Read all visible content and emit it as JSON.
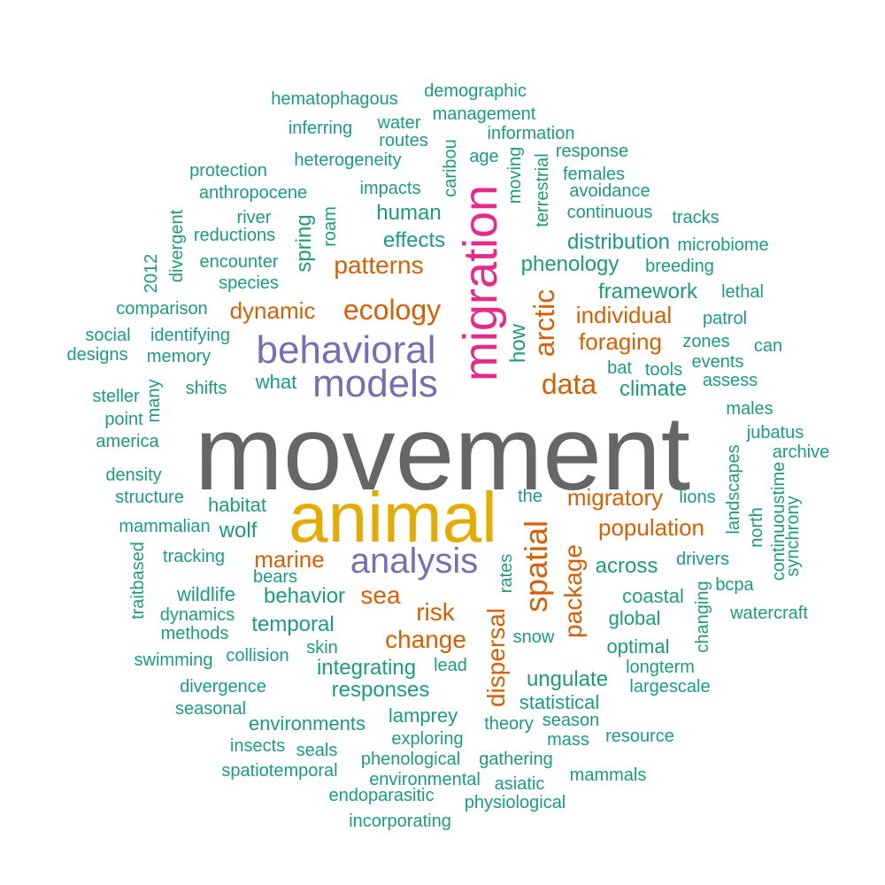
{
  "colors": {
    "gray": "#666666",
    "gold": "#E6AB02",
    "purple": "#7570B3",
    "pink": "#E7298A",
    "orange": "#D95F02",
    "teal": "#1B9E77"
  },
  "words": [
    {
      "text": "movement",
      "weight": 8,
      "color": "gray"
    },
    {
      "text": "animal",
      "weight": 7,
      "color": "gold"
    },
    {
      "text": "migration",
      "weight": 6,
      "color": "pink",
      "vertical": true
    },
    {
      "text": "behavioral",
      "weight": 5,
      "color": "purple"
    },
    {
      "text": "models",
      "weight": 5,
      "color": "purple"
    },
    {
      "text": "analysis",
      "weight": 5,
      "color": "purple"
    },
    {
      "text": "ecology",
      "weight": 4,
      "color": "orange"
    },
    {
      "text": "patterns",
      "weight": 4,
      "color": "orange"
    },
    {
      "text": "dynamic",
      "weight": 4,
      "color": "orange"
    },
    {
      "text": "data",
      "weight": 4,
      "color": "orange"
    },
    {
      "text": "arctic",
      "weight": 4,
      "color": "orange",
      "vertical": true
    },
    {
      "text": "spatial",
      "weight": 4,
      "color": "orange",
      "vertical": true
    },
    {
      "text": "migratory",
      "weight": 4,
      "color": "orange"
    },
    {
      "text": "population",
      "weight": 4,
      "color": "orange"
    },
    {
      "text": "marine",
      "weight": 4,
      "color": "orange"
    },
    {
      "text": "sea",
      "weight": 4,
      "color": "orange"
    },
    {
      "text": "risk",
      "weight": 4,
      "color": "orange"
    },
    {
      "text": "change",
      "weight": 4,
      "color": "orange"
    },
    {
      "text": "package",
      "weight": 4,
      "color": "orange",
      "vertical": true
    },
    {
      "text": "dispersal",
      "weight": 4,
      "color": "orange",
      "vertical": true
    },
    {
      "text": "individual",
      "weight": 4,
      "color": "orange"
    },
    {
      "text": "foraging",
      "weight": 4,
      "color": "orange"
    },
    {
      "text": "human",
      "weight": 3,
      "color": "teal"
    },
    {
      "text": "effects",
      "weight": 3,
      "color": "teal"
    },
    {
      "text": "impacts",
      "weight": 2,
      "color": "teal"
    },
    {
      "text": "distribution",
      "weight": 3,
      "color": "teal"
    },
    {
      "text": "phenology",
      "weight": 3,
      "color": "teal"
    },
    {
      "text": "framework",
      "weight": 3,
      "color": "teal"
    },
    {
      "text": "climate",
      "weight": 3,
      "color": "teal"
    },
    {
      "text": "spring",
      "weight": 3,
      "color": "teal",
      "vertical": true
    },
    {
      "text": "how",
      "weight": 3,
      "color": "teal",
      "vertical": true
    },
    {
      "text": "what",
      "weight": 3,
      "color": "teal"
    },
    {
      "text": "habitat",
      "weight": 3,
      "color": "teal"
    },
    {
      "text": "wolf",
      "weight": 3,
      "color": "teal"
    },
    {
      "text": "behavior",
      "weight": 3,
      "color": "teal"
    },
    {
      "text": "temporal",
      "weight": 3,
      "color": "teal"
    },
    {
      "text": "integrating",
      "weight": 3,
      "color": "teal"
    },
    {
      "text": "responses",
      "weight": 3,
      "color": "teal"
    },
    {
      "text": "across",
      "weight": 3,
      "color": "teal"
    },
    {
      "text": "ungulate",
      "weight": 3,
      "color": "teal"
    },
    {
      "text": "the",
      "weight": 2,
      "color": "teal"
    },
    {
      "text": "heterogeneity",
      "weight": 2,
      "color": "teal"
    },
    {
      "text": "statistical",
      "weight": 2,
      "color": "teal"
    },
    {
      "text": "environments",
      "weight": 2,
      "color": "teal"
    },
    {
      "text": "lamprey",
      "weight": 2,
      "color": "teal"
    },
    {
      "text": "continuous",
      "weight": 2,
      "color": "teal"
    },
    {
      "text": "hematophagous",
      "weight": 1,
      "color": "teal"
    },
    {
      "text": "demographic",
      "weight": 1,
      "color": "teal"
    },
    {
      "text": "management",
      "weight": 1,
      "color": "teal"
    },
    {
      "text": "inferring",
      "weight": 1,
      "color": "teal"
    },
    {
      "text": "water",
      "weight": 1,
      "color": "teal"
    },
    {
      "text": "information",
      "weight": 1,
      "color": "teal"
    },
    {
      "text": "routes",
      "weight": 1,
      "color": "teal"
    },
    {
      "text": "caribou",
      "weight": 1,
      "color": "teal",
      "vertical": true
    },
    {
      "text": "response",
      "weight": 1,
      "color": "teal"
    },
    {
      "text": "age",
      "weight": 1,
      "color": "teal"
    },
    {
      "text": "moving",
      "weight": 1,
      "color": "teal",
      "vertical": true
    },
    {
      "text": "protection",
      "weight": 1,
      "color": "teal"
    },
    {
      "text": "terrestrial",
      "weight": 1,
      "color": "teal",
      "vertical": true
    },
    {
      "text": "females",
      "weight": 1,
      "color": "teal"
    },
    {
      "text": "anthropocene",
      "weight": 1,
      "color": "teal"
    },
    {
      "text": "avoidance",
      "weight": 1,
      "color": "teal"
    },
    {
      "text": "divergent",
      "weight": 1,
      "color": "teal",
      "vertical": true
    },
    {
      "text": "river",
      "weight": 1,
      "color": "teal"
    },
    {
      "text": "roam",
      "weight": 1,
      "color": "teal",
      "vertical": true
    },
    {
      "text": "tracks",
      "weight": 1,
      "color": "teal"
    },
    {
      "text": "reductions",
      "weight": 1,
      "color": "teal"
    },
    {
      "text": "microbiome",
      "weight": 1,
      "color": "teal"
    },
    {
      "text": "2012",
      "weight": 1,
      "color": "teal",
      "vertical": true
    },
    {
      "text": "encounter",
      "weight": 1,
      "color": "teal"
    },
    {
      "text": "breeding",
      "weight": 1,
      "color": "teal"
    },
    {
      "text": "species",
      "weight": 1,
      "color": "teal"
    },
    {
      "text": "lethal",
      "weight": 1,
      "color": "teal"
    },
    {
      "text": "comparison",
      "weight": 1,
      "color": "teal"
    },
    {
      "text": "patrol",
      "weight": 1,
      "color": "teal"
    },
    {
      "text": "social",
      "weight": 1,
      "color": "teal"
    },
    {
      "text": "identifying",
      "weight": 1,
      "color": "teal"
    },
    {
      "text": "zones",
      "weight": 1,
      "color": "teal"
    },
    {
      "text": "can",
      "weight": 1,
      "color": "teal"
    },
    {
      "text": "designs",
      "weight": 1,
      "color": "teal"
    },
    {
      "text": "memory",
      "weight": 1,
      "color": "teal"
    },
    {
      "text": "bat",
      "weight": 1,
      "color": "teal"
    },
    {
      "text": "tools",
      "weight": 1,
      "color": "teal"
    },
    {
      "text": "events",
      "weight": 1,
      "color": "teal"
    },
    {
      "text": "many",
      "weight": 1,
      "color": "teal",
      "vertical": true
    },
    {
      "text": "shifts",
      "weight": 1,
      "color": "teal"
    },
    {
      "text": "assess",
      "weight": 1,
      "color": "teal"
    },
    {
      "text": "steller",
      "weight": 1,
      "color": "teal"
    },
    {
      "text": "point",
      "weight": 1,
      "color": "teal"
    },
    {
      "text": "males",
      "weight": 1,
      "color": "teal"
    },
    {
      "text": "america",
      "weight": 1,
      "color": "teal"
    },
    {
      "text": "jubatus",
      "weight": 1,
      "color": "teal"
    },
    {
      "text": "density",
      "weight": 1,
      "color": "teal"
    },
    {
      "text": "archive",
      "weight": 1,
      "color": "teal"
    },
    {
      "text": "landscapes",
      "weight": 1,
      "color": "teal",
      "vertical": true
    },
    {
      "text": "continuoustime",
      "weight": 1,
      "color": "teal",
      "vertical": true
    },
    {
      "text": "structure",
      "weight": 1,
      "color": "teal"
    },
    {
      "text": "lions",
      "weight": 1,
      "color": "teal"
    },
    {
      "text": "synchrony",
      "weight": 1,
      "color": "teal",
      "vertical": true
    },
    {
      "text": "north",
      "weight": 1,
      "color": "teal",
      "vertical": true
    },
    {
      "text": "mammalian",
      "weight": 1,
      "color": "teal"
    },
    {
      "text": "tracking",
      "weight": 1,
      "color": "teal"
    },
    {
      "text": "drivers",
      "weight": 1,
      "color": "teal"
    },
    {
      "text": "traitbased",
      "weight": 1,
      "color": "teal",
      "vertical": true
    },
    {
      "text": "bears",
      "weight": 1,
      "color": "teal"
    },
    {
      "text": "rates",
      "weight": 1,
      "color": "teal",
      "vertical": true
    },
    {
      "text": "changing",
      "weight": 1,
      "color": "teal",
      "vertical": true
    },
    {
      "text": "bcpa",
      "weight": 1,
      "color": "teal"
    },
    {
      "text": "wildlife",
      "weight": 2,
      "color": "teal"
    },
    {
      "text": "coastal",
      "weight": 2,
      "color": "teal"
    },
    {
      "text": "dynamics",
      "weight": 1,
      "color": "teal"
    },
    {
      "text": "global",
      "weight": 2,
      "color": "teal"
    },
    {
      "text": "watercraft",
      "weight": 1,
      "color": "teal"
    },
    {
      "text": "methods",
      "weight": 1,
      "color": "teal"
    },
    {
      "text": "skin",
      "weight": 1,
      "color": "teal"
    },
    {
      "text": "snow",
      "weight": 1,
      "color": "teal"
    },
    {
      "text": "optimal",
      "weight": 2,
      "color": "teal"
    },
    {
      "text": "swimming",
      "weight": 1,
      "color": "teal"
    },
    {
      "text": "collision",
      "weight": 1,
      "color": "teal"
    },
    {
      "text": "lead",
      "weight": 1,
      "color": "teal"
    },
    {
      "text": "longterm",
      "weight": 1,
      "color": "teal"
    },
    {
      "text": "divergence",
      "weight": 1,
      "color": "teal"
    },
    {
      "text": "largescale",
      "weight": 1,
      "color": "teal"
    },
    {
      "text": "seasonal",
      "weight": 1,
      "color": "teal"
    },
    {
      "text": "theory",
      "weight": 1,
      "color": "teal"
    },
    {
      "text": "season",
      "weight": 1,
      "color": "teal"
    },
    {
      "text": "mass",
      "weight": 1,
      "color": "teal"
    },
    {
      "text": "resource",
      "weight": 1,
      "color": "teal"
    },
    {
      "text": "exploring",
      "weight": 1,
      "color": "teal"
    },
    {
      "text": "insects",
      "weight": 1,
      "color": "teal"
    },
    {
      "text": "seals",
      "weight": 1,
      "color": "teal"
    },
    {
      "text": "phenological",
      "weight": 1,
      "color": "teal"
    },
    {
      "text": "gathering",
      "weight": 1,
      "color": "teal"
    },
    {
      "text": "spatiotemporal",
      "weight": 1,
      "color": "teal"
    },
    {
      "text": "mammals",
      "weight": 1,
      "color": "teal"
    },
    {
      "text": "environmental",
      "weight": 1,
      "color": "teal"
    },
    {
      "text": "asiatic",
      "weight": 1,
      "color": "teal"
    },
    {
      "text": "endoparasitic",
      "weight": 1,
      "color": "teal"
    },
    {
      "text": "physiological",
      "weight": 1,
      "color": "teal"
    },
    {
      "text": "incorporating",
      "weight": 1,
      "color": "teal"
    }
  ]
}
